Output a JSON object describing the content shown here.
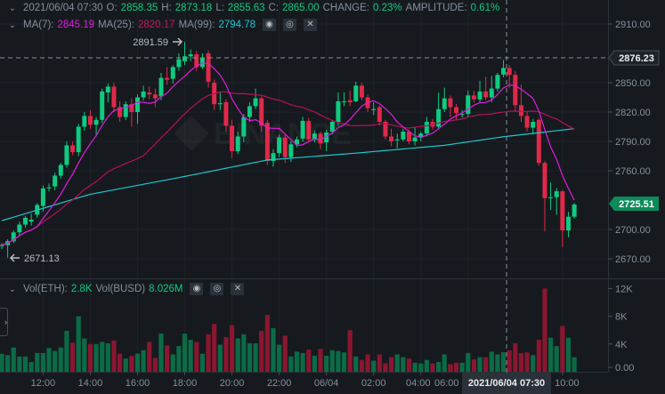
{
  "header": {
    "ohlc": {
      "time": "2021/06/04 07:30",
      "o_label": "O:",
      "o": "2858.35",
      "h_label": "H:",
      "h": "2873.18",
      "l_label": "L:",
      "l": "2855.63",
      "c_label": "C:",
      "c": "2865.00",
      "change_label": "CHANGE:",
      "change": "0.23%",
      "amplitude_label": "AMPLITUDE:",
      "amplitude": "0.61%"
    },
    "ma": {
      "ma7_label": "MA(7):",
      "ma7": "2845.19",
      "ma25_label": "MA(25):",
      "ma25": "2820.17",
      "ma99_label": "MA(99):",
      "ma99": "2794.78"
    },
    "vol": {
      "eth_label": "Vol(ETH):",
      "eth": "2.8K",
      "busd_label": "Vol(BUSD)",
      "busd": "8.026M"
    },
    "icons": {
      "eye": "eye-icon",
      "settings": "settings-icon",
      "close": "close-icon",
      "collapse": "chevron-down-icon"
    }
  },
  "watermark": "BINANCE",
  "colors": {
    "up": "#0ecb81",
    "down": "#e0294a",
    "vol_up": "#0b6b47",
    "vol_down": "#8a1630",
    "ma7": "#e01be0",
    "ma25": "#b8105a",
    "ma99": "#20c6cf",
    "bg": "#161a1e",
    "grid": "#1f2329",
    "text": "#848e9c"
  },
  "chart_data": {
    "type": "candlestick",
    "interval": "15m",
    "time_ticks": [
      "12:00",
      "14:00",
      "16:00",
      "18:00",
      "20:00",
      "22:00",
      "06/04",
      "02:00",
      "04:00",
      "06:00",
      "10:00"
    ],
    "price_ticks": [
      "2910.00",
      "2850.00",
      "2820.00",
      "2790.00",
      "2760.00",
      "2700.00",
      "2670.00"
    ],
    "volume_ticks": [
      "12K",
      "8K",
      "4K",
      "0.00"
    ],
    "ylim": [
      2670,
      2910
    ],
    "volume_ylim": [
      0,
      12
    ],
    "high_marker": "2891.59",
    "low_marker": "2671.13",
    "crosshair": {
      "time": "2021/06/04 07:30",
      "price": "2876.23"
    },
    "last_price": "2725.51",
    "ohlc": [
      [
        2683,
        2686,
        2680,
        2684
      ],
      [
        2684,
        2690,
        2671.13,
        2688
      ],
      [
        2688,
        2699,
        2686,
        2697
      ],
      [
        2697,
        2708,
        2694,
        2705
      ],
      [
        2705,
        2714,
        2702,
        2712
      ],
      [
        2708,
        2716,
        2704,
        2710
      ],
      [
        2715,
        2727,
        2712,
        2725
      ],
      [
        2724,
        2745,
        2718,
        2742
      ],
      [
        2742,
        2747,
        2739,
        2743
      ],
      [
        2744,
        2758,
        2740,
        2755
      ],
      [
        2755,
        2768,
        2752,
        2766
      ],
      [
        2766,
        2790,
        2763,
        2786
      ],
      [
        2786,
        2790,
        2776,
        2779
      ],
      [
        2779,
        2808,
        2775,
        2805
      ],
      [
        2805,
        2820,
        2801,
        2816
      ],
      [
        2816,
        2822,
        2803,
        2807
      ],
      [
        2807,
        2815,
        2796,
        2812
      ],
      [
        2812,
        2844,
        2809,
        2841
      ],
      [
        2840,
        2849,
        2830,
        2846
      ],
      [
        2846,
        2850,
        2820,
        2825
      ],
      [
        2825,
        2831,
        2810,
        2815
      ],
      [
        2815,
        2831,
        2812,
        2828
      ],
      [
        2828,
        2834,
        2805,
        2820
      ],
      [
        2820,
        2838,
        2808,
        2835
      ],
      [
        2835,
        2847,
        2832,
        2841
      ],
      [
        2840,
        2846,
        2833,
        2838
      ],
      [
        2838,
        2844,
        2825,
        2834
      ],
      [
        2836,
        2860,
        2832,
        2855
      ],
      [
        2855,
        2866,
        2848,
        2853
      ],
      [
        2854,
        2868,
        2849,
        2866
      ],
      [
        2866,
        2880,
        2862,
        2874
      ],
      [
        2872,
        2891.59,
        2868,
        2877
      ],
      [
        2877,
        2884,
        2872,
        2879
      ],
      [
        2879,
        2882,
        2862,
        2866
      ],
      [
        2866,
        2880,
        2864,
        2875
      ],
      [
        2880,
        2883,
        2845,
        2851
      ],
      [
        2850,
        2853,
        2822,
        2828
      ],
      [
        2828,
        2840,
        2822,
        2829
      ],
      [
        2830,
        2833,
        2800,
        2806
      ],
      [
        2806,
        2812,
        2773,
        2780
      ],
      [
        2780,
        2800,
        2777,
        2795
      ],
      [
        2795,
        2818,
        2789,
        2815
      ],
      [
        2815,
        2830,
        2810,
        2826
      ],
      [
        2826,
        2844,
        2823,
        2834
      ],
      [
        2834,
        2836,
        2800,
        2806
      ],
      [
        2809,
        2812,
        2766,
        2770
      ],
      [
        2770,
        2782,
        2764,
        2778
      ],
      [
        2778,
        2797,
        2774,
        2794
      ],
      [
        2794,
        2798,
        2768,
        2774
      ],
      [
        2774,
        2790,
        2769,
        2787
      ],
      [
        2787,
        2795,
        2784,
        2792
      ],
      [
        2793,
        2815,
        2790,
        2811
      ],
      [
        2811,
        2814,
        2789,
        2792
      ],
      [
        2792,
        2801,
        2789,
        2798
      ],
      [
        2798,
        2800,
        2782,
        2788
      ],
      [
        2789,
        2802,
        2780,
        2799
      ],
      [
        2800,
        2812,
        2797,
        2810
      ],
      [
        2810,
        2840,
        2806,
        2831
      ],
      [
        2831,
        2840,
        2826,
        2831
      ],
      [
        2832,
        2842,
        2826,
        2830
      ],
      [
        2831,
        2851,
        2830,
        2847
      ],
      [
        2847,
        2850,
        2832,
        2835
      ],
      [
        2835,
        2838,
        2820,
        2824
      ],
      [
        2822,
        2830,
        2817,
        2823
      ],
      [
        2825,
        2827,
        2806,
        2810
      ],
      [
        2810,
        2812,
        2792,
        2795
      ],
      [
        2795,
        2803,
        2785,
        2790
      ],
      [
        2791,
        2798,
        2783,
        2792
      ],
      [
        2792,
        2803,
        2790,
        2800
      ],
      [
        2800,
        2802,
        2787,
        2790
      ],
      [
        2790,
        2805,
        2786,
        2794
      ],
      [
        2794,
        2800,
        2790,
        2798
      ],
      [
        2798,
        2815,
        2795,
        2810
      ],
      [
        2810,
        2813,
        2802,
        2805
      ],
      [
        2805,
        2840,
        2803,
        2823
      ],
      [
        2823,
        2845,
        2820,
        2834
      ],
      [
        2834,
        2837,
        2815,
        2825
      ],
      [
        2825,
        2828,
        2812,
        2819
      ],
      [
        2818,
        2822,
        2814,
        2818
      ],
      [
        2818,
        2842,
        2815,
        2837
      ],
      [
        2837,
        2842,
        2830,
        2833
      ],
      [
        2833,
        2852,
        2830,
        2841
      ],
      [
        2841,
        2856,
        2832,
        2835
      ],
      [
        2835,
        2857,
        2830,
        2844
      ],
      [
        2844,
        2860,
        2841,
        2858
      ],
      [
        2858.35,
        2873.18,
        2855.63,
        2865
      ],
      [
        2865,
        2868,
        2845,
        2858
      ],
      [
        2858,
        2862,
        2820,
        2827
      ],
      [
        2827,
        2848,
        2810,
        2816
      ],
      [
        2816,
        2820,
        2800,
        2804
      ],
      [
        2804,
        2813,
        2797,
        2810
      ],
      [
        2812,
        2814,
        2765,
        2768
      ],
      [
        2768,
        2770,
        2698,
        2732
      ],
      [
        2732,
        2748,
        2720,
        2733
      ],
      [
        2733,
        2742,
        2715,
        2739
      ],
      [
        2739,
        2740,
        2682,
        2699
      ],
      [
        2699,
        2718,
        2692,
        2713
      ],
      [
        2713,
        2727,
        2711,
        2725.51
      ]
    ],
    "volume_k": [
      2.6,
      2.4,
      3.5,
      2.2,
      2.2,
      1.4,
      2.7,
      2.7,
      3.4,
      3.0,
      3.5,
      5.9,
      4.2,
      8.0,
      4.8,
      4.0,
      4.0,
      4.3,
      4.1,
      4.5,
      2.6,
      1.9,
      2.3,
      2.6,
      3.1,
      4.3,
      2.0,
      5.5,
      3.8,
      2.5,
      3.7,
      5.5,
      4.6,
      4.3,
      2.6,
      5.4,
      6.9,
      3.9,
      5.0,
      6.7,
      4.8,
      5.4,
      4.1,
      4.1,
      5.9,
      8.2,
      6.3,
      3.9,
      5.2,
      2.2,
      2.9,
      2.7,
      3.2,
      2.3,
      3.3,
      2.3,
      3.1,
      3.0,
      2.8,
      6.0,
      2.2,
      1.7,
      2.5,
      1.6,
      2.5,
      1.2,
      2.1,
      2.5,
      2.1,
      1.9,
      1.3,
      1.2,
      1.7,
      1.2,
      1.4,
      2.5,
      1.1,
      1.3,
      1.3,
      2.7,
      1.8,
      2.1,
      2.1,
      2.9,
      2.5,
      2.8,
      3.1,
      4.1,
      2.7,
      2.8,
      2.4,
      4.6,
      12.0,
      4.9,
      3.7,
      6.6,
      4.9,
      2.1
    ],
    "ma99_anchors": [
      [
        0,
        2709
      ],
      [
        15,
        2736
      ],
      [
        30,
        2753
      ],
      [
        45,
        2771
      ],
      [
        60,
        2778
      ],
      [
        75,
        2786
      ],
      [
        85,
        2794.78
      ],
      [
        97,
        2803
      ]
    ]
  }
}
